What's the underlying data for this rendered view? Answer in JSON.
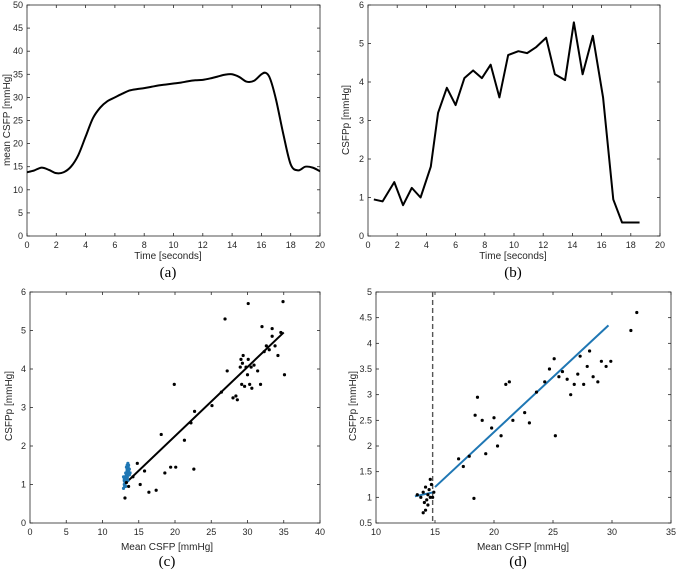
{
  "chart_data": [
    {
      "type": "line",
      "caption": "(a)",
      "xlabel": "Time [seconds]",
      "ylabel": "mean CSFP [mmHg]",
      "xlim": [
        0,
        20
      ],
      "ylim": [
        0,
        50
      ],
      "xticks": [
        0,
        2,
        4,
        6,
        8,
        10,
        12,
        14,
        16,
        18,
        20
      ],
      "yticks": [
        0,
        5,
        10,
        15,
        20,
        25,
        30,
        35,
        40,
        45,
        50
      ],
      "grid": false,
      "series": [
        {
          "name": "mean CSFP",
          "color": "#000000",
          "smooth": true,
          "x": [
            0,
            0.5,
            1,
            1.5,
            2,
            2.5,
            3,
            3.5,
            4,
            4.5,
            5,
            5.5,
            6,
            6.5,
            7,
            7.5,
            8,
            8.5,
            9,
            9.5,
            10,
            10.5,
            11,
            11.5,
            12,
            12.5,
            13,
            13.5,
            14,
            14.5,
            15,
            15.5,
            16,
            16.3,
            16.6,
            17,
            17.5,
            18,
            18.5,
            19,
            19.5,
            20
          ],
          "y": [
            13.8,
            14.2,
            14.8,
            14.3,
            13.6,
            13.8,
            15.0,
            17.5,
            21.5,
            25.5,
            27.8,
            29.2,
            30.0,
            30.8,
            31.5,
            31.8,
            32.0,
            32.3,
            32.6,
            32.8,
            33.0,
            33.2,
            33.5,
            33.7,
            33.8,
            34.1,
            34.5,
            34.9,
            35.0,
            34.4,
            33.4,
            33.6,
            35.0,
            35.3,
            34.0,
            29.5,
            22.0,
            15.5,
            14.2,
            15.0,
            14.8,
            14.0
          ]
        }
      ]
    },
    {
      "type": "line",
      "caption": "(b)",
      "xlabel": "Time [seconds]",
      "ylabel": "CSFPp [mmHg]",
      "xlim": [
        0,
        20
      ],
      "ylim": [
        0,
        6
      ],
      "xticks": [
        0,
        2,
        4,
        6,
        8,
        10,
        12,
        14,
        16,
        18,
        20
      ],
      "yticks": [
        0,
        1,
        2,
        3,
        4,
        5,
        6
      ],
      "grid": false,
      "series": [
        {
          "name": "CSFPp",
          "color": "#000000",
          "smooth": false,
          "x": [
            0.4,
            1.0,
            1.8,
            2.4,
            3.0,
            3.6,
            4.3,
            4.8,
            5.4,
            6.0,
            6.6,
            7.2,
            7.8,
            8.4,
            9.0,
            9.6,
            10.3,
            10.9,
            11.5,
            12.2,
            12.8,
            13.5,
            14.1,
            14.7,
            15.4,
            16.1,
            16.8,
            17.4,
            18.0,
            18.6
          ],
          "y": [
            0.95,
            0.9,
            1.4,
            0.8,
            1.25,
            1.0,
            1.8,
            3.2,
            3.85,
            3.4,
            4.1,
            4.3,
            4.1,
            4.45,
            3.6,
            4.7,
            4.8,
            4.75,
            4.9,
            5.15,
            4.2,
            4.05,
            5.55,
            4.2,
            5.2,
            3.6,
            0.95,
            0.35,
            0.35,
            0.35
          ]
        }
      ]
    },
    {
      "type": "scatter",
      "caption": "(c)",
      "xlabel": "Mean CSFP [mmHg]",
      "ylabel": "CSFPp [mmHg]",
      "xlim": [
        0,
        40
      ],
      "ylim": [
        0,
        6
      ],
      "xticks": [
        0,
        5,
        10,
        15,
        20,
        25,
        30,
        35,
        40
      ],
      "yticks": [
        0,
        1,
        2,
        3,
        4,
        5,
        6
      ],
      "grid": false,
      "points": {
        "x": [
          13.1,
          13.3,
          13.6,
          14.2,
          14.8,
          15.2,
          15.8,
          16.4,
          17.4,
          18.1,
          18.6,
          19.4,
          20.1,
          21.3,
          22.2,
          22.6,
          25.1,
          26.4,
          27.2,
          28.0,
          28.6,
          29.0,
          29.1,
          29.2,
          29.3,
          29.4,
          29.6,
          29.8,
          30.0,
          30.1,
          30.3,
          30.5,
          30.9,
          31.4,
          31.8,
          32.3,
          32.6,
          33.0,
          33.4,
          33.8,
          34.2,
          34.6,
          35.1,
          19.9,
          30.1,
          32.0,
          33.4,
          34.9,
          26.9,
          28.4,
          30.6,
          22.7
        ],
        "y": [
          0.65,
          1.05,
          0.95,
          1.2,
          1.55,
          1.0,
          1.35,
          0.8,
          0.85,
          2.3,
          1.3,
          1.45,
          1.45,
          2.15,
          2.6,
          1.4,
          3.05,
          3.4,
          3.95,
          3.25,
          3.2,
          4.05,
          4.25,
          3.6,
          4.15,
          4.35,
          3.55,
          4.05,
          3.85,
          4.25,
          3.6,
          4.05,
          4.1,
          3.95,
          3.6,
          4.45,
          4.6,
          4.5,
          4.85,
          4.6,
          4.35,
          4.95,
          3.85,
          3.6,
          5.7,
          5.1,
          5.05,
          5.75,
          5.3,
          3.3,
          3.5,
          2.9
        ],
        "color": "#000000"
      },
      "blue_points": {
        "x": [
          12.9,
          13.0,
          13.0,
          13.1,
          13.1,
          13.2,
          13.2,
          13.3,
          13.3,
          13.4,
          13.4,
          13.5,
          13.5,
          13.6,
          13.6,
          13.7,
          13.7,
          13.8,
          12.9,
          13.0,
          13.1
        ],
        "y": [
          0.9,
          1.0,
          1.1,
          1.2,
          1.05,
          1.3,
          0.95,
          1.45,
          1.15,
          1.5,
          1.25,
          1.55,
          1.1,
          1.35,
          1.5,
          1.4,
          1.25,
          1.3,
          1.2,
          1.15,
          0.95
        ],
        "color": "#1f77b4"
      },
      "fit_line": {
        "x": [
          13.0,
          35.0
        ],
        "y": [
          1.0,
          4.95
        ],
        "color": "#000000"
      }
    },
    {
      "type": "scatter",
      "caption": "(d)",
      "xlabel": "Mean CSFP [mmHg]",
      "ylabel": "CSFPp [mmHg]",
      "xlim": [
        10,
        35
      ],
      "ylim": [
        0.5,
        5
      ],
      "xticks": [
        10,
        15,
        20,
        25,
        30,
        35
      ],
      "yticks": [
        0.5,
        1,
        1.5,
        2,
        2.5,
        3,
        3.5,
        4,
        4.5,
        5
      ],
      "grid": false,
      "points": {
        "x": [
          13.5,
          13.8,
          14.0,
          14.1,
          14.2,
          14.3,
          14.4,
          14.5,
          14.6,
          14.7,
          14.8,
          14.9,
          14.2,
          14.0,
          14.6,
          14.4,
          17.0,
          17.4,
          17.9,
          18.3,
          18.6,
          19.0,
          19.3,
          19.8,
          20.0,
          20.3,
          20.6,
          21.0,
          21.3,
          21.6,
          22.6,
          23.0,
          23.6,
          24.3,
          24.7,
          25.1,
          25.5,
          25.8,
          26.2,
          26.5,
          26.8,
          27.1,
          27.3,
          27.6,
          27.9,
          28.1,
          28.4,
          28.8,
          29.1,
          29.5,
          29.9,
          31.6,
          32.1,
          18.4,
          25.2
        ],
        "y": [
          1.05,
          1.0,
          1.1,
          0.9,
          1.2,
          0.95,
          1.05,
          1.15,
          1.0,
          1.25,
          1.0,
          1.1,
          0.75,
          0.7,
          1.35,
          0.85,
          1.75,
          1.6,
          1.8,
          0.98,
          2.95,
          2.5,
          1.85,
          2.35,
          2.55,
          2.0,
          2.2,
          3.2,
          3.25,
          2.5,
          2.65,
          2.45,
          3.05,
          3.25,
          3.5,
          3.7,
          3.35,
          3.45,
          3.3,
          3.0,
          3.2,
          3.4,
          3.75,
          3.2,
          3.55,
          3.85,
          3.35,
          3.25,
          3.65,
          3.55,
          3.65,
          4.25,
          4.6,
          2.6,
          2.2
        ],
        "color": "#000000"
      },
      "fit_line": {
        "x": [
          15.0,
          29.7
        ],
        "y": [
          1.2,
          4.35
        ],
        "color": "#1f77b4"
      },
      "short_line": {
        "x": [
          13.3,
          14.9
        ],
        "y": [
          1.02,
          1.1
        ],
        "color": "#1f77b4"
      },
      "vline": {
        "x": 14.8,
        "style": "dashed",
        "color": "#555555"
      }
    }
  ]
}
